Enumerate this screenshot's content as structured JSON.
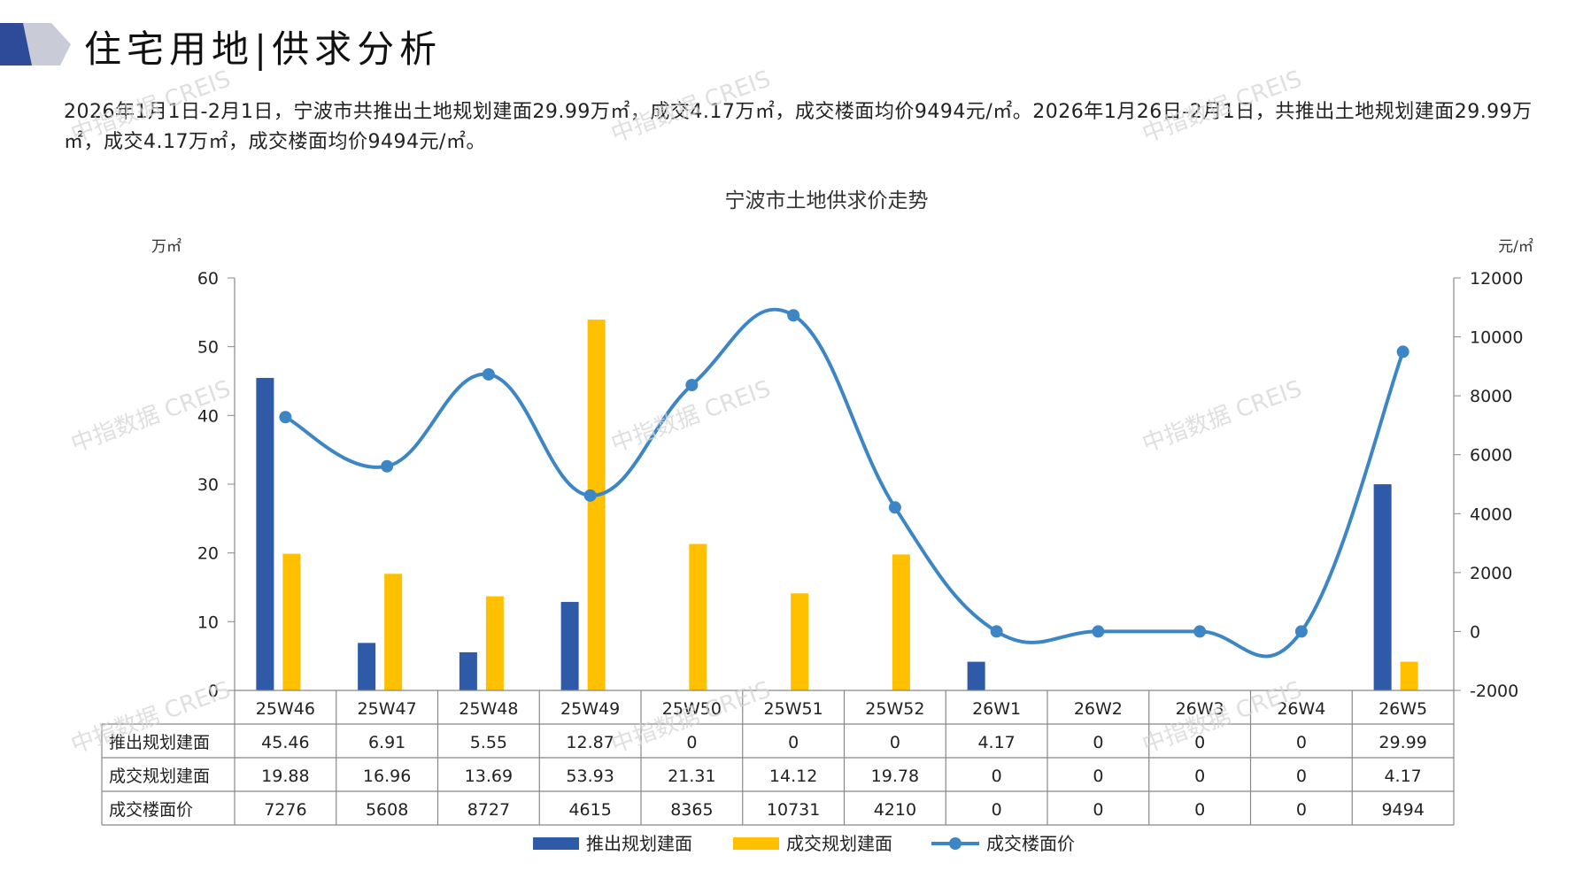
{
  "page": {
    "title": "住宅用地|供求分析",
    "summary": "2026年1月1日-2月1日，宁波市共推出土地规划建面29.99万㎡，成交4.17万㎡，成交楼面均价9494元/㎡。2026年1月26日-2月1日，共推出土地规划建面29.99万㎡，成交4.17万㎡，成交楼面均价9494元/㎡。",
    "watermark": "中指数据 CREIS"
  },
  "colors": {
    "supply": "#2e5aa8",
    "deal": "#ffc000",
    "price": "#3d86c6",
    "logo_dark": "#2e4b9a",
    "logo_light": "#c9ccd6"
  },
  "chart_data": {
    "type": "bar",
    "title": "宁波市土地供求价走势",
    "y_left_unit": "万㎡",
    "y_right_unit": "元/㎡",
    "ylim_left": [
      0,
      60
    ],
    "ylim_right": [
      -2000,
      12000
    ],
    "y_left_ticks": [
      0,
      10,
      20,
      30,
      40,
      50,
      60
    ],
    "y_right_ticks": [
      -2000,
      0,
      2000,
      4000,
      6000,
      8000,
      10000,
      12000
    ],
    "categories": [
      "25W46",
      "25W47",
      "25W48",
      "25W49",
      "25W50",
      "25W51",
      "25W52",
      "26W1",
      "26W2",
      "26W3",
      "26W4",
      "26W5"
    ],
    "series": [
      {
        "name": "推出规划建面",
        "type": "bar",
        "axis": "left",
        "values": [
          45.46,
          6.91,
          5.55,
          12.87,
          0,
          0,
          0,
          4.17,
          0,
          0,
          0,
          29.99
        ],
        "labels": [
          "45.46",
          "6.91",
          "5.55",
          "12.87",
          "0",
          "0",
          "0",
          "4.17",
          "0",
          "0",
          "0",
          "29.99"
        ]
      },
      {
        "name": "成交规划建面",
        "type": "bar",
        "axis": "left",
        "values": [
          19.88,
          16.96,
          13.69,
          53.93,
          21.31,
          14.12,
          19.78,
          0,
          0,
          0,
          0,
          4.17
        ],
        "labels": [
          "19.88",
          "16.96",
          "13.69",
          "53.93",
          "21.31",
          "14.12",
          "19.78",
          "0",
          "0",
          "0",
          "0",
          "4.17"
        ]
      },
      {
        "name": "成交楼面价",
        "type": "line",
        "axis": "right",
        "values": [
          7276,
          5608,
          8727,
          4615,
          8365,
          10731,
          4210,
          0,
          0,
          0,
          0,
          9494
        ],
        "labels": [
          "7276",
          "5608",
          "8727",
          "4615",
          "8365",
          "10731",
          "4210",
          "0",
          "0",
          "0",
          "0",
          "9494"
        ]
      }
    ],
    "legend_position": "bottom",
    "data_table": true
  }
}
